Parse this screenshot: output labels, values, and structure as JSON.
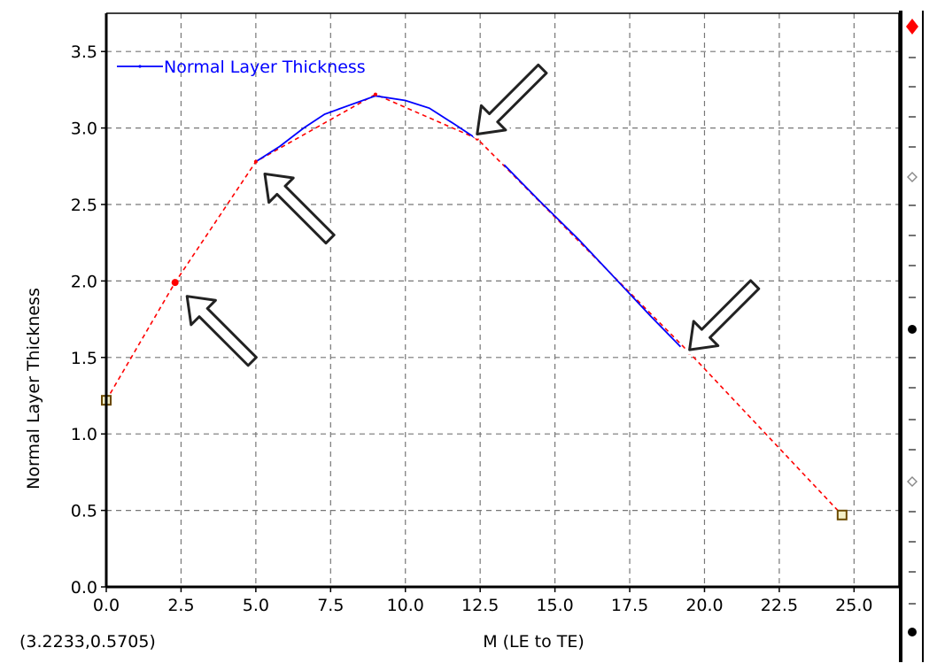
{
  "coordinate_readout": "(3.2233,0.5705)",
  "colors": {
    "curve": "#0000ff",
    "control_polyline": "#ff0000",
    "endpoint_marker": "#6b4a00",
    "grid": "#777777",
    "handle_red": "#ff0000",
    "handle_black": "#000000",
    "handle_hollow": "#888888"
  },
  "chart_data": {
    "type": "line",
    "xlabel": "M (LE to TE)",
    "ylabel": "Normal Layer Thickness",
    "xlim": [
      0,
      26.5
    ],
    "ylim": [
      0,
      3.75
    ],
    "xticks": [
      "0.0",
      "2.5",
      "5.0",
      "7.5",
      "10.0",
      "12.5",
      "15.0",
      "17.5",
      "20.0",
      "22.5",
      "25.0"
    ],
    "yticks": [
      "0.0",
      "0.5",
      "1.0",
      "1.5",
      "2.0",
      "2.5",
      "3.0",
      "3.5"
    ],
    "grid": true,
    "legend": {
      "position": "top-left",
      "entries": [
        "Normal Layer Thickness"
      ]
    },
    "series": [
      {
        "name": "Normal Layer Thickness",
        "color": "#0000ff",
        "style": "solid",
        "x": [
          5.0,
          5.8,
          6.6,
          7.3,
          8.0,
          9.0,
          10.0,
          10.8,
          11.6,
          12.3
        ],
        "y": [
          2.78,
          2.88,
          3.0,
          3.09,
          3.14,
          3.21,
          3.18,
          3.13,
          3.03,
          2.94
        ]
      },
      {
        "name": "",
        "color": "#0000ff",
        "style": "solid",
        "x": [
          13.3,
          14.5,
          15.8,
          17.0,
          18.2,
          19.2
        ],
        "y": [
          2.76,
          2.52,
          2.27,
          2.02,
          1.77,
          1.57
        ]
      }
    ],
    "control_polygon": {
      "color": "#ff0000",
      "style": "dashed",
      "x": [
        0.0,
        2.3,
        5.0,
        9.0,
        12.4,
        19.5,
        24.6
      ],
      "y": [
        1.22,
        1.99,
        2.78,
        3.22,
        2.93,
        1.53,
        0.47
      ]
    },
    "endpoints": {
      "x": [
        0.0,
        24.6
      ],
      "y": [
        1.22,
        0.47
      ]
    },
    "control_points": {
      "x": [
        2.3,
        5.0,
        9.0,
        12.4,
        19.5
      ],
      "y": [
        1.99,
        2.78,
        3.22,
        2.93,
        1.53
      ]
    },
    "annotation_arrows": [
      {
        "tip": [
          2.7,
          1.9
        ],
        "direction": "up-left"
      },
      {
        "tip": [
          5.3,
          2.7
        ],
        "direction": "up-left"
      },
      {
        "tip": [
          12.4,
          2.96
        ],
        "direction": "down-left"
      },
      {
        "tip": [
          19.5,
          1.55
        ],
        "direction": "down-left"
      }
    ]
  },
  "side_strip": {
    "handles": [
      {
        "kind": "red-diamond"
      },
      {
        "kind": "hollow-diamond"
      },
      {
        "kind": "black-dot"
      },
      {
        "kind": "hollow-diamond"
      },
      {
        "kind": "black-dot"
      }
    ]
  }
}
